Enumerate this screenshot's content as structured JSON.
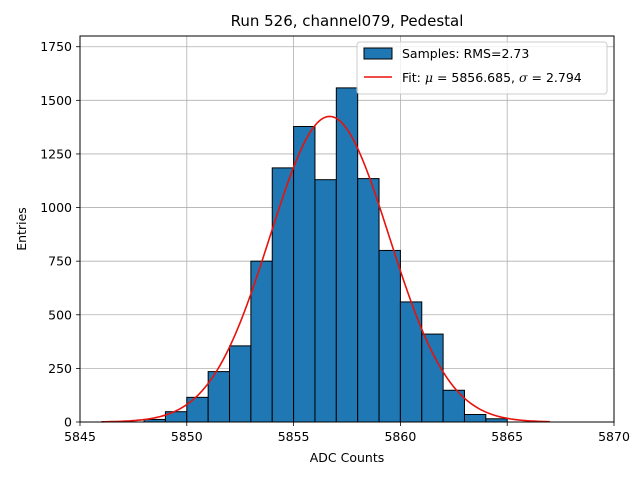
{
  "chart_data": {
    "type": "bar",
    "title": "Run 526, channel079, Pedestal",
    "xlabel": "ADC Counts",
    "ylabel": "Entries",
    "xlim": [
      5845,
      5870
    ],
    "ylim": [
      0,
      1800
    ],
    "xticks": [
      5845,
      5850,
      5855,
      5860,
      5865,
      5870
    ],
    "yticks": [
      0,
      250,
      500,
      750,
      1000,
      1250,
      1500,
      1750
    ],
    "grid": true,
    "legend_position": "top-right",
    "colors": {
      "bars": "#1f77b4",
      "bar_edge": "#000000",
      "fit": "#e8120c",
      "grid": "#b0b0b0"
    },
    "histogram": {
      "name": "Samples: RMS=2.73",
      "bin_width": 1,
      "bin_edges_start": [
        5848,
        5849,
        5850,
        5851,
        5852,
        5853,
        5854,
        5855,
        5856,
        5857,
        5858,
        5859,
        5860,
        5861,
        5862,
        5863,
        5864
      ],
      "counts": [
        12,
        48,
        115,
        235,
        355,
        750,
        1185,
        1378,
        1130,
        1558,
        1135,
        800,
        560,
        410,
        148,
        35,
        15
      ]
    },
    "fit": {
      "label_prefix": "Fit: ",
      "mu_symbol": "μ",
      "mu_value": " = 5856.685, ",
      "sigma_symbol": "σ",
      "sigma_value": " = 2.794",
      "mu": 5856.685,
      "sigma": 2.794,
      "amplitude": 1425,
      "x_range": [
        5846,
        5867
      ]
    }
  }
}
